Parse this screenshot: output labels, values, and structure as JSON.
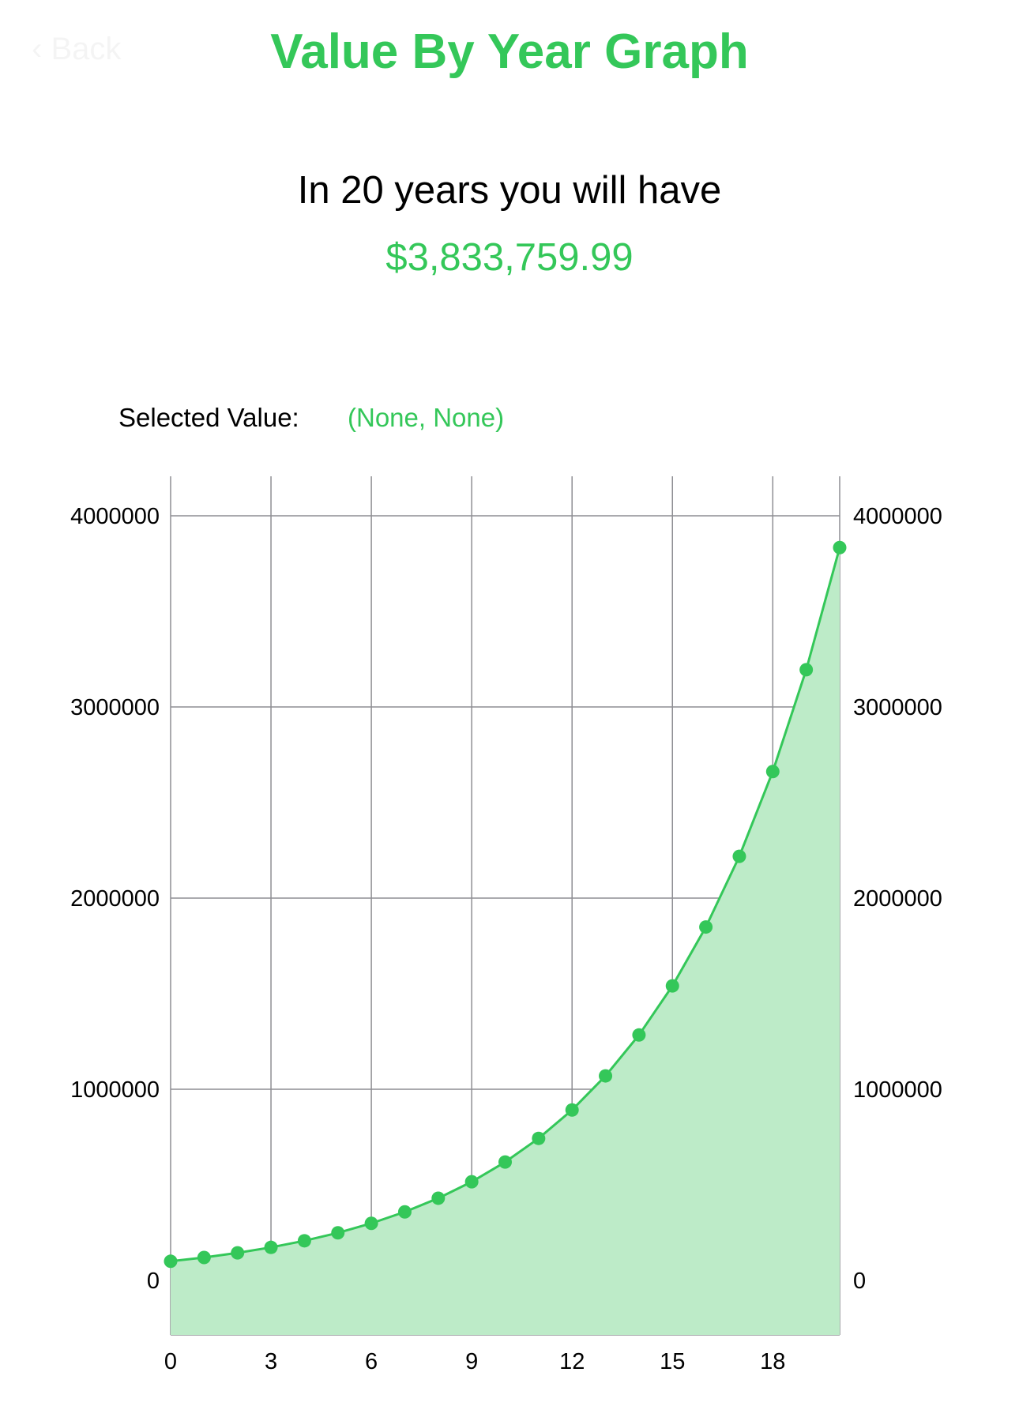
{
  "nav": {
    "back_label": "Back",
    "title": "Value By Year Graph"
  },
  "summary": {
    "headline": "In 20 years you will have",
    "amount": "$3,833,759.99"
  },
  "selection": {
    "label": "Selected Value:",
    "value": "(None, None)"
  },
  "colors": {
    "accent": "#34c759",
    "fill": "#bdebc8",
    "grid": "#8e8e93"
  },
  "chart_data": {
    "type": "area",
    "title": "",
    "xlabel": "",
    "ylabel": "",
    "x": [
      0,
      1,
      2,
      3,
      4,
      5,
      6,
      7,
      8,
      9,
      10,
      11,
      12,
      13,
      14,
      15,
      16,
      17,
      18,
      19,
      20
    ],
    "series": [
      {
        "values": [
          100000,
          120000,
          144000,
          172800,
          207360,
          248832,
          298598,
          358318,
          429982,
          515978,
          619174,
          743008,
          891610,
          1069932,
          1283918,
          1540702,
          1848843,
          2218611,
          2662333,
          3194800,
          3833760
        ]
      }
    ],
    "xlim": [
      0,
      20
    ],
    "ylim": [
      -270000,
      4200000
    ],
    "xticks": [
      0,
      3,
      6,
      9,
      12,
      15,
      18
    ],
    "yticks": [
      0,
      1000000,
      2000000,
      3000000,
      4000000
    ],
    "xtick_labels": [
      "0",
      "3",
      "6",
      "9",
      "12",
      "15",
      "18"
    ],
    "ytick_labels": [
      "0",
      "1000000",
      "2000000",
      "3000000",
      "4000000"
    ],
    "grid": true,
    "y_axis_sides": "both"
  }
}
